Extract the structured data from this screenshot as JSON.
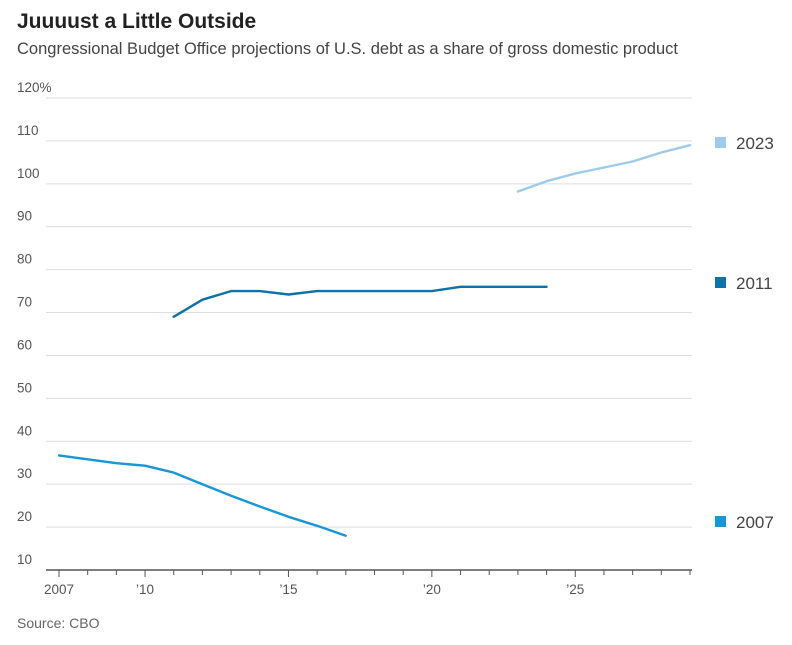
{
  "chart_data": {
    "type": "line",
    "title": "Juuuust a Little Outside",
    "subtitle": "Congressional Budget Office projections of U.S. debt as a share of gross domestic product",
    "source": "Source: CBO",
    "xlabel": "",
    "ylabel": "",
    "xlim": [
      2007,
      2029
    ],
    "ylim": [
      10,
      120
    ],
    "y_ticks": [
      {
        "value": 120,
        "label": "120%"
      },
      {
        "value": 110,
        "label": "110"
      },
      {
        "value": 100,
        "label": "100"
      },
      {
        "value": 90,
        "label": "90"
      },
      {
        "value": 80,
        "label": "80"
      },
      {
        "value": 70,
        "label": "70"
      },
      {
        "value": 60,
        "label": "60"
      },
      {
        "value": 50,
        "label": "50"
      },
      {
        "value": 40,
        "label": "40"
      },
      {
        "value": 30,
        "label": "30"
      },
      {
        "value": 20,
        "label": "20"
      },
      {
        "value": 10,
        "label": "10"
      }
    ],
    "x_ticks": [
      {
        "value": 2007,
        "label": "2007"
      },
      {
        "value": 2010,
        "label": "’10"
      },
      {
        "value": 2015,
        "label": "’15"
      },
      {
        "value": 2020,
        "label": "’20"
      },
      {
        "value": 2025,
        "label": "’25"
      }
    ],
    "series": [
      {
        "name": "2023",
        "color": "#9ecbeb",
        "x": [
          2023,
          2024,
          2025,
          2026,
          2027,
          2028,
          2029
        ],
        "values": [
          98.2,
          100.6,
          102.4,
          103.8,
          105.2,
          107.3,
          109.0
        ]
      },
      {
        "name": "2011",
        "color": "#0d72a9",
        "x": [
          2011,
          2012,
          2013,
          2014,
          2015,
          2016,
          2017,
          2018,
          2019,
          2020,
          2021,
          2022,
          2023,
          2024
        ],
        "values": [
          69.0,
          73.0,
          75.0,
          75.0,
          74.2,
          75.0,
          75.0,
          75.0,
          75.0,
          75.0,
          76.0,
          76.0,
          76.0,
          76.0
        ]
      },
      {
        "name": "2007",
        "color": "#1996d8",
        "x": [
          2007,
          2008,
          2009,
          2010,
          2011,
          2012,
          2013,
          2014,
          2015,
          2016,
          2017
        ],
        "values": [
          36.7,
          35.8,
          34.9,
          34.3,
          32.7,
          30.0,
          27.3,
          24.8,
          22.4,
          20.3,
          18.0
        ]
      }
    ]
  }
}
